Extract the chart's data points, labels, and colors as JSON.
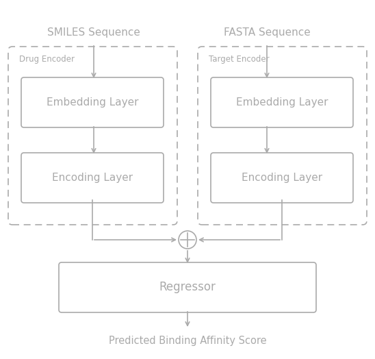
{
  "fig_width": 5.48,
  "fig_height": 5.24,
  "background_color": "#ffffff",
  "gray": "#aaaaaa",
  "lw": 1.2,
  "title_smiles": "SMILES Sequence",
  "title_fasta": "FASTA Sequence",
  "label_drug": "Drug Encoder",
  "label_target": "Target Encoder",
  "label_embed_left": "Embedding Layer",
  "label_embed_right": "Embedding Layer",
  "label_encode_left": "Encoding Layer",
  "label_encode_right": "Encoding Layer",
  "label_regressor": "Regressor",
  "label_output": "Predicted Binding Affinity Score"
}
